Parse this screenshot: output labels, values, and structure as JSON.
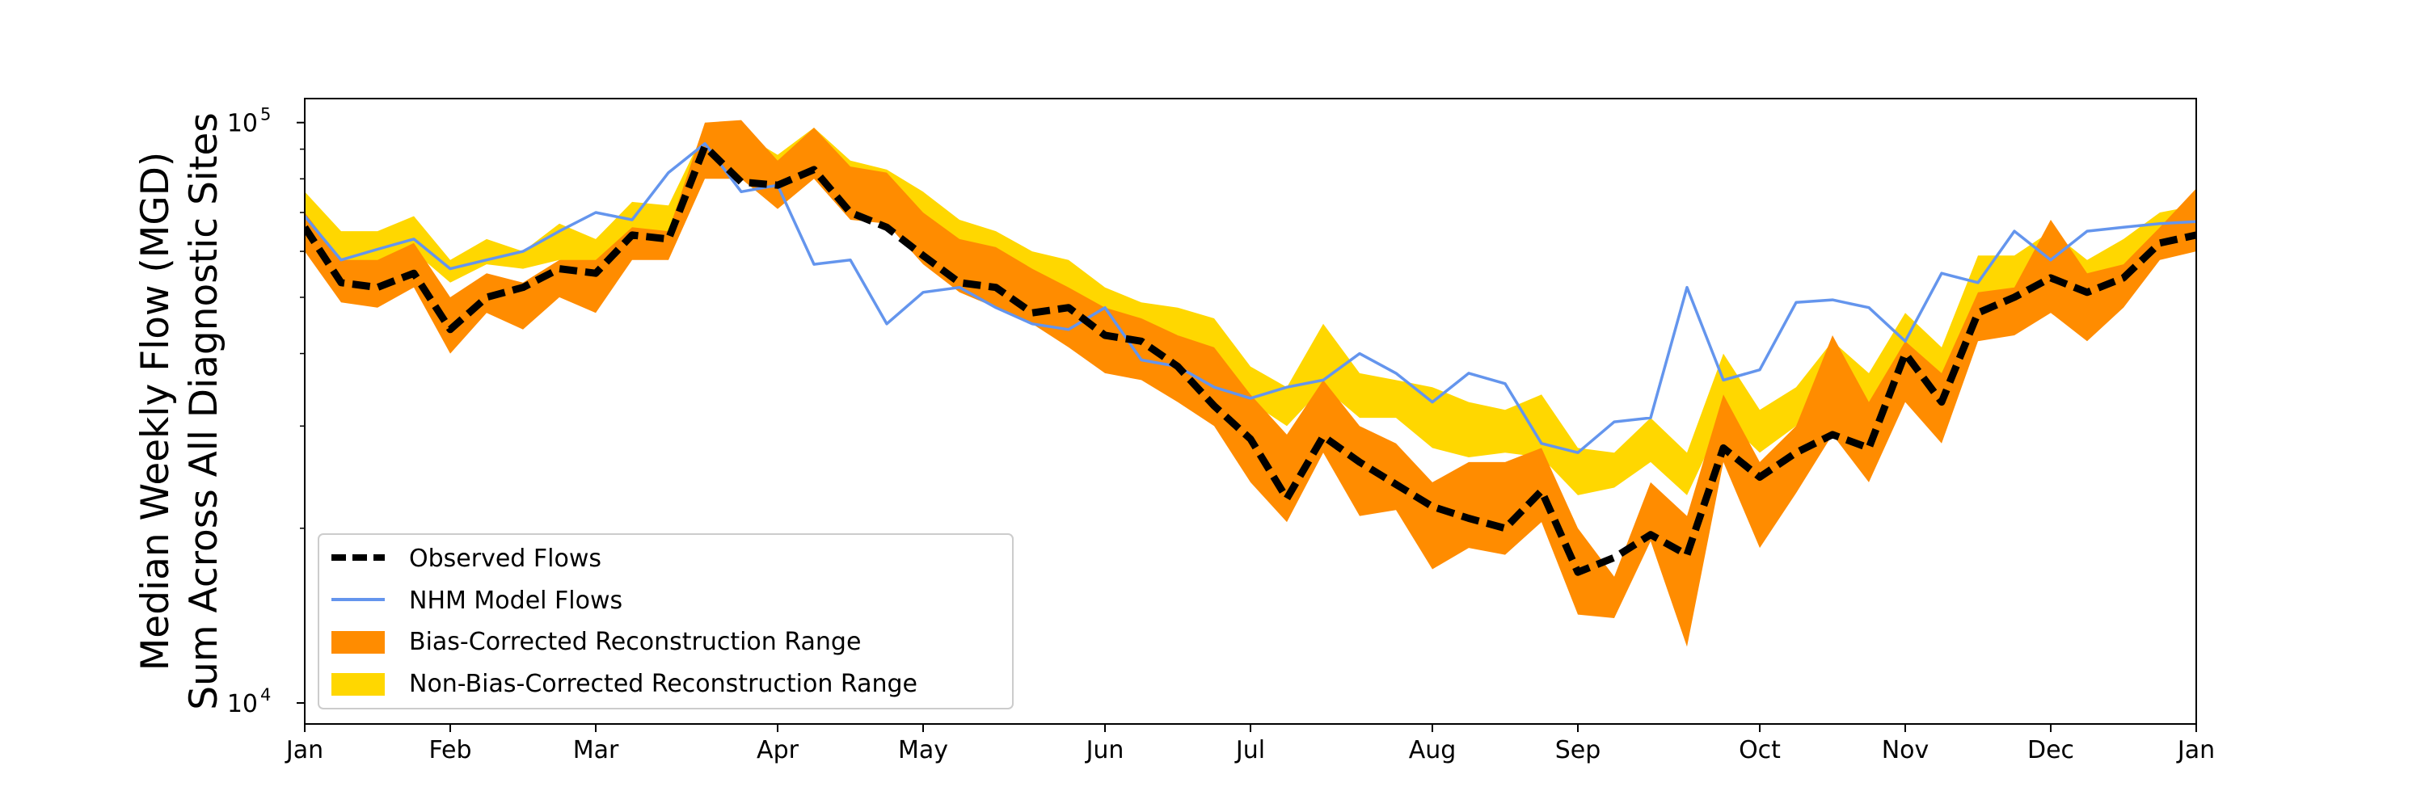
{
  "chart_data": {
    "type": "line",
    "title": "",
    "xlabel": "",
    "ylabel_line1": "Median Weekly Flow (MGD)",
    "ylabel_line2": "Sum Across All Diagnostic Sites",
    "yscale": "log",
    "ylim": [
      9200,
      110000
    ],
    "xlim": [
      0,
      52
    ],
    "y_ticks": [
      {
        "value": 10000,
        "base": "10",
        "exp": "4"
      },
      {
        "value": 100000,
        "base": "10",
        "exp": "5"
      }
    ],
    "x_ticks": [
      {
        "value": 0,
        "label": "Jan"
      },
      {
        "value": 4,
        "label": "Feb"
      },
      {
        "value": 8,
        "label": "Mar"
      },
      {
        "value": 13,
        "label": "Apr"
      },
      {
        "value": 17,
        "label": "May"
      },
      {
        "value": 22,
        "label": "Jun"
      },
      {
        "value": 26,
        "label": "Jul"
      },
      {
        "value": 31,
        "label": "Aug"
      },
      {
        "value": 35,
        "label": "Sep"
      },
      {
        "value": 40,
        "label": "Oct"
      },
      {
        "value": 44,
        "label": "Nov"
      },
      {
        "value": 48,
        "label": "Dec"
      },
      {
        "value": 52,
        "label": "Jan"
      }
    ],
    "grid": false,
    "legend_position": "lower-left",
    "series": [
      {
        "name": "Non-Bias-Corrected Reconstruction Range",
        "kind": "band",
        "color": "#FFD700",
        "x": [
          0,
          1,
          2,
          3,
          4,
          5,
          6,
          7,
          8,
          9,
          10,
          11,
          12,
          13,
          14,
          15,
          16,
          17,
          18,
          19,
          20,
          21,
          22,
          23,
          24,
          25,
          26,
          27,
          28,
          29,
          30,
          31,
          32,
          33,
          34,
          35,
          36,
          37,
          38,
          39,
          40,
          41,
          42,
          43,
          44,
          45,
          46,
          47,
          48,
          49,
          50,
          51,
          52
        ],
        "upper": [
          76000,
          65000,
          65000,
          69000,
          58000,
          63000,
          60000,
          67000,
          63000,
          73000,
          72000,
          97000,
          96000,
          88000,
          98000,
          86000,
          83000,
          76000,
          68000,
          65000,
          60000,
          58000,
          52000,
          49000,
          48000,
          46000,
          38000,
          35000,
          45000,
          37000,
          36000,
          35000,
          33000,
          32000,
          34000,
          27500,
          27000,
          31000,
          27000,
          40000,
          32000,
          35000,
          42000,
          37000,
          47000,
          41000,
          59000,
          59000,
          65000,
          58000,
          63000,
          70000,
          72000
        ],
        "lower": [
          64000,
          56000,
          57000,
          60000,
          53000,
          57000,
          56000,
          58000,
          57000,
          62000,
          62000,
          85000,
          86000,
          78000,
          86000,
          75000,
          74000,
          66000,
          59000,
          56000,
          51000,
          50000,
          46000,
          44000,
          43000,
          40000,
          33000,
          30000,
          35000,
          31000,
          31000,
          27500,
          26500,
          27000,
          26500,
          22800,
          23500,
          26000,
          22800,
          31000,
          27000,
          30000,
          33000,
          31000,
          38000,
          35000,
          49000,
          50000,
          57000,
          52000,
          56000,
          63000,
          64000
        ]
      },
      {
        "name": "Bias-Corrected Reconstruction Range",
        "kind": "band",
        "color": "#FF8C00",
        "x": [
          0,
          1,
          2,
          3,
          4,
          5,
          6,
          7,
          8,
          9,
          10,
          11,
          12,
          13,
          14,
          15,
          16,
          17,
          18,
          19,
          20,
          21,
          22,
          23,
          24,
          25,
          26,
          27,
          28,
          29,
          30,
          31,
          32,
          33,
          34,
          35,
          36,
          37,
          38,
          39,
          40,
          41,
          42,
          43,
          44,
          45,
          46,
          47,
          48,
          49,
          50,
          51,
          52
        ],
        "upper": [
          70000,
          58000,
          58000,
          62000,
          50000,
          55000,
          53000,
          58000,
          58000,
          66000,
          65000,
          100000,
          101000,
          86000,
          98000,
          84000,
          82000,
          70000,
          63000,
          61000,
          56000,
          52000,
          48000,
          46000,
          43000,
          41000,
          34000,
          29000,
          36000,
          30000,
          28000,
          24000,
          26000,
          26000,
          27500,
          20000,
          16500,
          24000,
          21000,
          34000,
          26000,
          30000,
          43000,
          33000,
          42000,
          37000,
          51000,
          52000,
          68000,
          55000,
          57000,
          66000,
          77000
        ],
        "lower": [
          60000,
          49000,
          48000,
          52000,
          40000,
          47000,
          44000,
          50000,
          47000,
          58000,
          58000,
          80000,
          80000,
          71000,
          80000,
          68000,
          67000,
          57000,
          51000,
          48000,
          45000,
          41000,
          37000,
          36000,
          33000,
          30000,
          24000,
          20500,
          27000,
          21000,
          21500,
          17000,
          18500,
          18000,
          20500,
          14200,
          14000,
          19000,
          12500,
          26000,
          18500,
          23000,
          29000,
          24000,
          33000,
          28000,
          42000,
          43000,
          47000,
          42000,
          48000,
          58000,
          60000
        ]
      },
      {
        "name": "NHM Model Flows",
        "kind": "line",
        "color": "#6495ED",
        "x": [
          0,
          1,
          2,
          3,
          4,
          5,
          6,
          7,
          8,
          9,
          10,
          11,
          12,
          13,
          14,
          15,
          16,
          17,
          18,
          19,
          20,
          21,
          22,
          23,
          24,
          25,
          26,
          27,
          28,
          29,
          30,
          31,
          32,
          33,
          34,
          35,
          36,
          37,
          38,
          39,
          40,
          41,
          42,
          43,
          44,
          45,
          46,
          47,
          48,
          49,
          50,
          51,
          52
        ],
        "values": [
          69000,
          58000,
          60500,
          63000,
          56000,
          58000,
          60000,
          65000,
          70000,
          68000,
          82000,
          92000,
          76000,
          78000,
          57000,
          58000,
          45000,
          51000,
          52000,
          48000,
          45000,
          44000,
          48000,
          39000,
          38000,
          35000,
          33500,
          35000,
          36000,
          40000,
          37000,
          33000,
          37000,
          35500,
          28000,
          27000,
          30500,
          31000,
          52000,
          36000,
          37500,
          49000,
          49500,
          48000,
          42000,
          55000,
          53000,
          65000,
          58000,
          65000,
          66000,
          67000,
          67500
        ]
      },
      {
        "name": "Observed Flows",
        "kind": "line",
        "color": "#000000",
        "x": [
          0,
          1,
          2,
          3,
          4,
          5,
          6,
          7,
          8,
          9,
          10,
          11,
          12,
          13,
          14,
          15,
          16,
          17,
          18,
          19,
          20,
          21,
          22,
          23,
          24,
          25,
          26,
          27,
          28,
          29,
          30,
          31,
          32,
          33,
          34,
          35,
          36,
          37,
          38,
          39,
          40,
          41,
          42,
          43,
          44,
          45,
          46,
          47,
          48,
          49,
          50,
          51,
          52
        ],
        "values": [
          66000,
          53000,
          52000,
          55000,
          44000,
          50000,
          52000,
          56000,
          55000,
          64000,
          63000,
          91000,
          79000,
          78000,
          83000,
          70000,
          66000,
          59000,
          53000,
          52000,
          47000,
          48000,
          43000,
          42000,
          38000,
          32500,
          28500,
          22500,
          28800,
          26000,
          23800,
          21800,
          20800,
          20000,
          23200,
          16800,
          17800,
          19500,
          18000,
          27500,
          24500,
          27000,
          29000,
          27500,
          40000,
          33000,
          47000,
          50000,
          54000,
          51000,
          54000,
          62000,
          64000
        ]
      }
    ]
  }
}
